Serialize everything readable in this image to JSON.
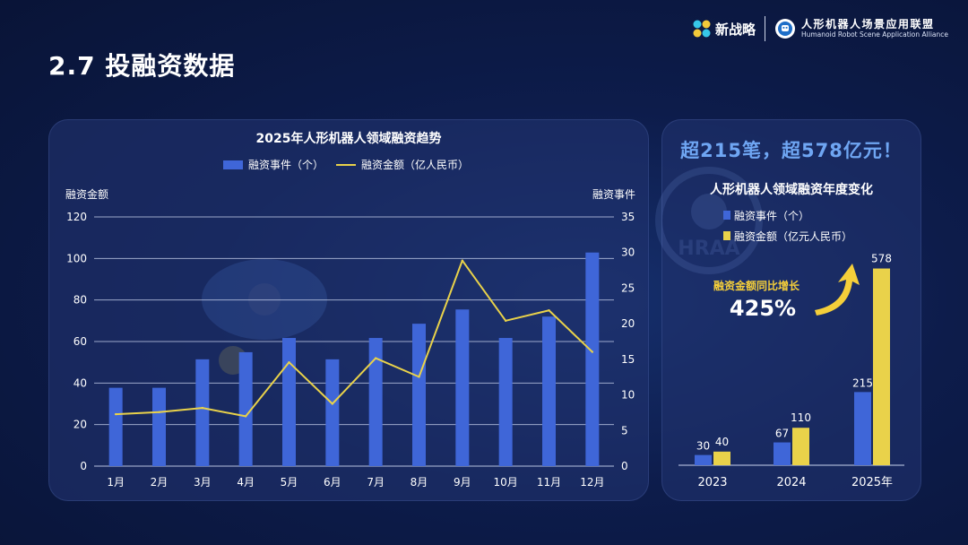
{
  "header": {
    "page_title": "2.7 投融资数据",
    "logo_xzl": "新战略",
    "logo_hraa_cn": "人形机器人场景应用联盟",
    "logo_hraa_en": "Humanoid Robot Scene Application Alliance",
    "watermark_text": "HRAA"
  },
  "colors": {
    "bar_blue": "#3f66d8",
    "line_yellow": "#e9d24a",
    "headline_blue": "#6fa6f3",
    "arrow_yellow": "#f5cf3a"
  },
  "chart_data": [
    {
      "type": "bar",
      "title": "2025年人形机器人领域融资趋势",
      "legend": [
        "融资事件（个）",
        "融资金额（亿人民币）"
      ],
      "legend_position": "top",
      "ylabel_left": "融资金额",
      "ylabel_right": "融资事件",
      "categories": [
        "1月",
        "2月",
        "3月",
        "4月",
        "5月",
        "6月",
        "7月",
        "8月",
        "9月",
        "10月",
        "11月",
        "12月"
      ],
      "series": [
        {
          "name": "融资事件（个）",
          "type": "bar",
          "axis": "right",
          "values": [
            11,
            11,
            15,
            16,
            18,
            15,
            18,
            20,
            22,
            18,
            21,
            30
          ]
        },
        {
          "name": "融资金额（亿人民币）",
          "type": "line",
          "axis": "left",
          "values": [
            25,
            26,
            28,
            24,
            50,
            30,
            52,
            43,
            99,
            70,
            75,
            55
          ]
        }
      ],
      "ylim_left": [
        0,
        120
      ],
      "yticks_left": [
        "0",
        "20",
        "40",
        "60",
        "80",
        "100",
        "120"
      ],
      "ylim_right": [
        0,
        35
      ],
      "yticks_right": [
        "0",
        "5",
        "10",
        "15",
        "20",
        "25",
        "30",
        "35"
      ],
      "grid": true
    },
    {
      "type": "bar",
      "title": "人形机器人领域融资年度变化",
      "legend": [
        "融资事件（个）",
        "融资金额（亿元人民币）"
      ],
      "legend_position": "top-left",
      "categories": [
        "2023",
        "2024",
        "2025年"
      ],
      "series": [
        {
          "name": "融资事件（个）",
          "values": [
            30,
            67,
            215
          ],
          "labels": [
            "30",
            "67",
            "215"
          ]
        },
        {
          "name": "融资金额（亿元人民币）",
          "values": [
            40,
            110,
            578
          ],
          "labels": [
            "40",
            "110",
            "578"
          ]
        }
      ],
      "ylim": [
        0,
        640
      ],
      "annotation": {
        "text": "融资金额同比增长",
        "value": "425%"
      },
      "headline": "超215笔，超578亿元！"
    }
  ]
}
